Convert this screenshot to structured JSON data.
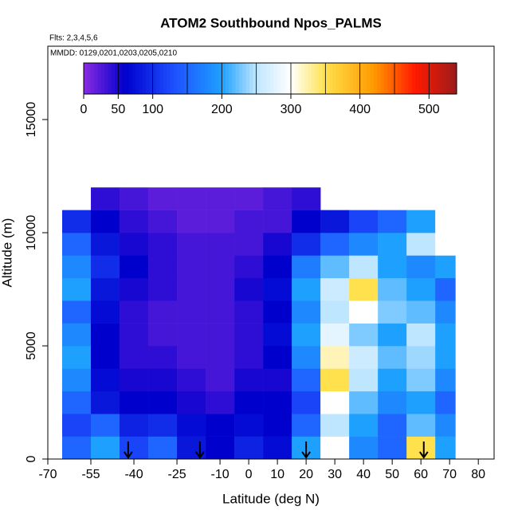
{
  "chart_data": {
    "type": "heatmap",
    "title": "ATOM2 Southbound Npos_PALMS",
    "subtitle": "Flts: 2,3,4,5,6",
    "annotation": "MMDD: 0129,0201,0203,0205,0210",
    "x_label": "Latitude (deg N)",
    "y_label": "Altitude (m)",
    "xlim": [
      -70,
      85.5
    ],
    "xticks": [
      -70,
      -55,
      -40,
      -25,
      -10,
      0,
      10,
      20,
      30,
      40,
      50,
      60,
      70,
      80
    ],
    "ylim": [
      0,
      18240
    ],
    "yticks": [
      0,
      5000,
      10000,
      15000
    ],
    "lat_edges": [
      -65,
      -55,
      -45,
      -35,
      -25,
      -15,
      -5,
      5,
      15,
      25,
      35,
      45,
      55,
      65,
      72
    ],
    "alt_edges": [
      0,
      1000,
      2000,
      3000,
      4000,
      5000,
      6000,
      7000,
      8000,
      9000,
      10000,
      11000,
      12000
    ],
    "z": [
      [
        150,
        200,
        120,
        150,
        80,
        60,
        90,
        70,
        200,
        300,
        180,
        150,
        350,
        200
      ],
      [
        120,
        150,
        90,
        100,
        70,
        60,
        70,
        60,
        150,
        250,
        200,
        150,
        220,
        180
      ],
      [
        150,
        80,
        60,
        60,
        50,
        40,
        60,
        60,
        120,
        300,
        220,
        180,
        200,
        150
      ],
      [
        180,
        70,
        50,
        50,
        40,
        30,
        50,
        50,
        150,
        350,
        250,
        200,
        230,
        180
      ],
      [
        200,
        60,
        40,
        40,
        30,
        30,
        40,
        60,
        180,
        320,
        260,
        220,
        240,
        200
      ],
      [
        180,
        60,
        40,
        30,
        30,
        30,
        40,
        70,
        200,
        280,
        230,
        200,
        250,
        200
      ],
      [
        150,
        70,
        40,
        30,
        30,
        30,
        40,
        60,
        180,
        250,
        300,
        230,
        220,
        180
      ],
      [
        200,
        80,
        50,
        40,
        30,
        30,
        50,
        70,
        200,
        260,
        350,
        220,
        200,
        150
      ],
      [
        180,
        100,
        60,
        40,
        30,
        30,
        40,
        60,
        170,
        220,
        250,
        200,
        180,
        200
      ],
      [
        150,
        80,
        50,
        40,
        30,
        30,
        30,
        50,
        100,
        150,
        180,
        200,
        250,
        300
      ],
      [
        100,
        60,
        40,
        30,
        20,
        20,
        30,
        30,
        60,
        80,
        120,
        150,
        200,
        300
      ],
      [
        null,
        40,
        30,
        20,
        20,
        20,
        20,
        30,
        40,
        null,
        null,
        null,
        null,
        null
      ]
    ],
    "arrows_lat": [
      -42,
      -17,
      20,
      61
    ],
    "colorbar": {
      "lim": [
        0,
        540
      ],
      "ticks": [
        0,
        50,
        100,
        200,
        300,
        400,
        500
      ],
      "divisions": [
        50,
        100,
        150,
        200,
        250,
        300,
        350,
        400,
        450,
        500
      ],
      "stops": [
        [
          0,
          "#8a2be2"
        ],
        [
          60,
          "#0000cd"
        ],
        [
          130,
          "#1e4fff"
        ],
        [
          200,
          "#1ea0ff"
        ],
        [
          250,
          "#bfe6ff"
        ],
        [
          300,
          "#ffffff"
        ],
        [
          350,
          "#ffe14d"
        ],
        [
          420,
          "#ff9900"
        ],
        [
          480,
          "#ff1a00"
        ],
        [
          540,
          "#9b1b1b"
        ]
      ]
    }
  }
}
